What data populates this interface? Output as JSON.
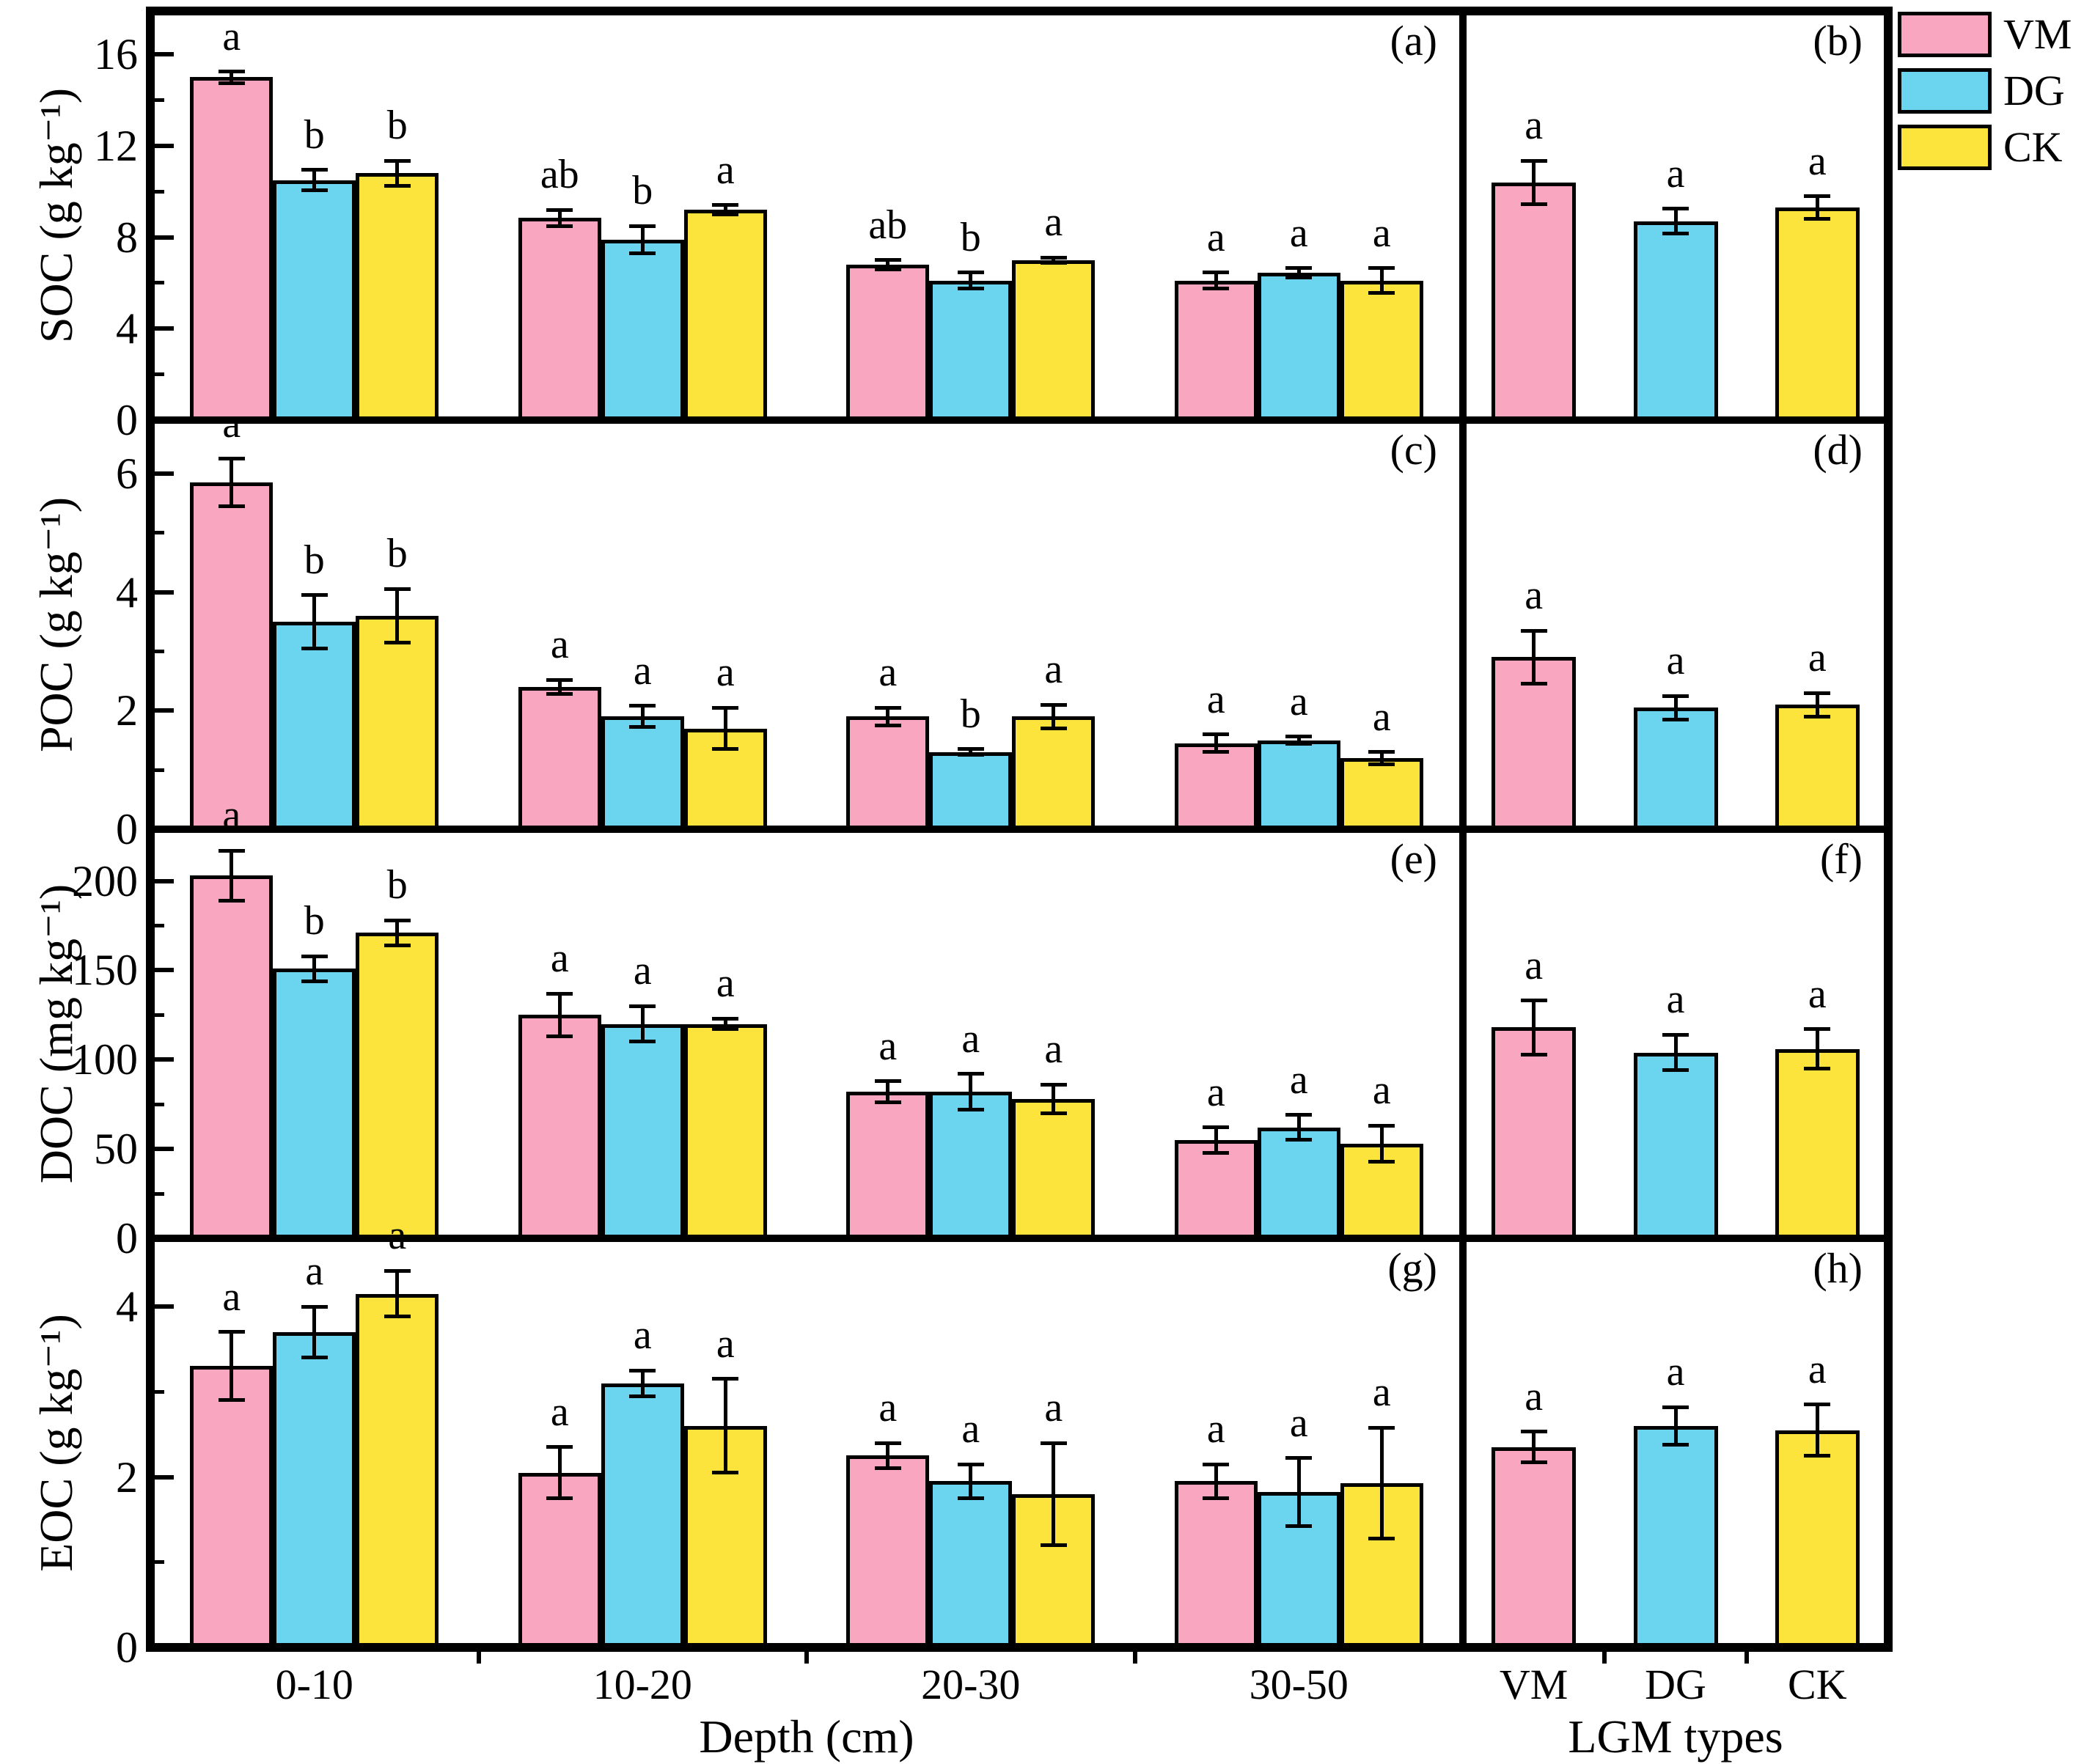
{
  "figure": {
    "x_axis_title_left": "Depth (cm)",
    "x_axis_title_right": "LGM types",
    "series_colors": {
      "VM": "#F9A6C1",
      "DG": "#6BD5F0",
      "CK": "#FCE43C"
    },
    "border_color": "#000000",
    "legend": {
      "position": "top-right-outside",
      "items": [
        {
          "label": "VM",
          "color": "#F9A6C1"
        },
        {
          "label": "DG",
          "color": "#6BD5F0"
        },
        {
          "label": "CK",
          "color": "#FCE43C"
        }
      ]
    }
  },
  "chart_data": [
    {
      "id": "a",
      "panel_label": "(a)",
      "type": "bar",
      "ylabel": "SOC (g kg⁻¹)",
      "ylim": [
        0,
        17.9
      ],
      "yticks": [
        0,
        4,
        8,
        12,
        16
      ],
      "minor_yticks": [
        2,
        6,
        10,
        14
      ],
      "show_x_labels": false,
      "groups": [
        {
          "label": "0-10",
          "bars": [
            {
              "series": "VM",
              "value": 15.0,
              "error": 0.25,
              "letter": "a"
            },
            {
              "series": "DG",
              "value": 10.5,
              "error": 0.45,
              "letter": "b"
            },
            {
              "series": "CK",
              "value": 10.8,
              "error": 0.55,
              "letter": "b"
            }
          ]
        },
        {
          "label": "10-20",
          "bars": [
            {
              "series": "VM",
              "value": 8.85,
              "error": 0.35,
              "letter": "ab"
            },
            {
              "series": "DG",
              "value": 7.9,
              "error": 0.6,
              "letter": "b"
            },
            {
              "series": "CK",
              "value": 9.2,
              "error": 0.2,
              "letter": "a"
            }
          ]
        },
        {
          "label": "20-30",
          "bars": [
            {
              "series": "VM",
              "value": 6.8,
              "error": 0.2,
              "letter": "ab"
            },
            {
              "series": "DG",
              "value": 6.1,
              "error": 0.35,
              "letter": "b"
            },
            {
              "series": "CK",
              "value": 7.0,
              "error": 0.12,
              "letter": "a"
            }
          ]
        },
        {
          "label": "30-50",
          "bars": [
            {
              "series": "VM",
              "value": 6.1,
              "error": 0.35,
              "letter": "a"
            },
            {
              "series": "DG",
              "value": 6.45,
              "error": 0.2,
              "letter": "a"
            },
            {
              "series": "CK",
              "value": 6.1,
              "error": 0.55,
              "letter": "a"
            }
          ]
        }
      ]
    },
    {
      "id": "b",
      "panel_label": "(b)",
      "type": "bar",
      "ylabel": "",
      "ylim": [
        0,
        17.9
      ],
      "yticks": [],
      "minor_yticks": [],
      "show_x_labels": false,
      "groups": [
        {
          "label": "VM",
          "bars": [
            {
              "series": "VM",
              "value": 10.4,
              "error": 0.95,
              "letter": "a"
            }
          ]
        },
        {
          "label": "DG",
          "bars": [
            {
              "series": "DG",
              "value": 8.7,
              "error": 0.55,
              "letter": "a"
            }
          ]
        },
        {
          "label": "CK",
          "bars": [
            {
              "series": "CK",
              "value": 9.3,
              "error": 0.5,
              "letter": "a"
            }
          ]
        }
      ]
    },
    {
      "id": "c",
      "panel_label": "(c)",
      "type": "bar",
      "ylabel": "POC (g kg⁻¹)",
      "ylim": [
        0,
        6.9
      ],
      "yticks": [
        0,
        2,
        4,
        6
      ],
      "minor_yticks": [
        1,
        3,
        5
      ],
      "show_x_labels": false,
      "groups": [
        {
          "label": "0-10",
          "bars": [
            {
              "series": "VM",
              "value": 5.85,
              "error": 0.4,
              "letter": "a"
            },
            {
              "series": "DG",
              "value": 3.5,
              "error": 0.45,
              "letter": "b"
            },
            {
              "series": "CK",
              "value": 3.6,
              "error": 0.45,
              "letter": "b"
            }
          ]
        },
        {
          "label": "10-20",
          "bars": [
            {
              "series": "VM",
              "value": 2.4,
              "error": 0.12,
              "letter": "a"
            },
            {
              "series": "DG",
              "value": 1.9,
              "error": 0.18,
              "letter": "a"
            },
            {
              "series": "CK",
              "value": 1.7,
              "error": 0.35,
              "letter": "a"
            }
          ]
        },
        {
          "label": "20-30",
          "bars": [
            {
              "series": "VM",
              "value": 1.9,
              "error": 0.15,
              "letter": "a"
            },
            {
              "series": "DG",
              "value": 1.3,
              "error": 0.05,
              "letter": "b"
            },
            {
              "series": "CK",
              "value": 1.9,
              "error": 0.2,
              "letter": "a"
            }
          ]
        },
        {
          "label": "30-50",
          "bars": [
            {
              "series": "VM",
              "value": 1.45,
              "error": 0.15,
              "letter": "a"
            },
            {
              "series": "DG",
              "value": 1.5,
              "error": 0.06,
              "letter": "a"
            },
            {
              "series": "CK",
              "value": 1.2,
              "error": 0.1,
              "letter": "a"
            }
          ]
        }
      ]
    },
    {
      "id": "d",
      "panel_label": "(d)",
      "type": "bar",
      "ylabel": "",
      "ylim": [
        0,
        6.9
      ],
      "yticks": [],
      "minor_yticks": [],
      "show_x_labels": false,
      "groups": [
        {
          "label": "VM",
          "bars": [
            {
              "series": "VM",
              "value": 2.9,
              "error": 0.45,
              "letter": "a"
            }
          ]
        },
        {
          "label": "DG",
          "bars": [
            {
              "series": "DG",
              "value": 2.05,
              "error": 0.2,
              "letter": "a"
            }
          ]
        },
        {
          "label": "CK",
          "bars": [
            {
              "series": "CK",
              "value": 2.1,
              "error": 0.2,
              "letter": "a"
            }
          ]
        }
      ]
    },
    {
      "id": "e",
      "panel_label": "(e)",
      "type": "bar",
      "ylabel": "DOC (mg kg⁻¹)",
      "ylim": [
        0,
        229
      ],
      "yticks": [
        0,
        50,
        100,
        150,
        200
      ],
      "minor_yticks": [
        25,
        75,
        125,
        175
      ],
      "show_x_labels": false,
      "groups": [
        {
          "label": "0-10",
          "bars": [
            {
              "series": "VM",
              "value": 203,
              "error": 14,
              "letter": "a"
            },
            {
              "series": "DG",
              "value": 151,
              "error": 7,
              "letter": "b"
            },
            {
              "series": "CK",
              "value": 171,
              "error": 7,
              "letter": "b"
            }
          ]
        },
        {
          "label": "10-20",
          "bars": [
            {
              "series": "VM",
              "value": 125,
              "error": 12,
              "letter": "a"
            },
            {
              "series": "DG",
              "value": 120,
              "error": 10,
              "letter": "a"
            },
            {
              "series": "CK",
              "value": 120,
              "error": 3,
              "letter": "a"
            }
          ]
        },
        {
          "label": "20-30",
          "bars": [
            {
              "series": "VM",
              "value": 82,
              "error": 6,
              "letter": "a"
            },
            {
              "series": "DG",
              "value": 82,
              "error": 10,
              "letter": "a"
            },
            {
              "series": "CK",
              "value": 78,
              "error": 8,
              "letter": "a"
            }
          ]
        },
        {
          "label": "30-50",
          "bars": [
            {
              "series": "VM",
              "value": 55,
              "error": 7,
              "letter": "a"
            },
            {
              "series": "DG",
              "value": 62,
              "error": 7,
              "letter": "a"
            },
            {
              "series": "CK",
              "value": 53,
              "error": 10,
              "letter": "a"
            }
          ]
        }
      ]
    },
    {
      "id": "f",
      "panel_label": "(f)",
      "type": "bar",
      "ylabel": "",
      "ylim": [
        0,
        229
      ],
      "yticks": [],
      "minor_yticks": [],
      "show_x_labels": false,
      "groups": [
        {
          "label": "VM",
          "bars": [
            {
              "series": "VM",
              "value": 118,
              "error": 15,
              "letter": "a"
            }
          ]
        },
        {
          "label": "DG",
          "bars": [
            {
              "series": "DG",
              "value": 104,
              "error": 10,
              "letter": "a"
            }
          ]
        },
        {
          "label": "CK",
          "bars": [
            {
              "series": "CK",
              "value": 106,
              "error": 11,
              "letter": "a"
            }
          ]
        }
      ]
    },
    {
      "id": "g",
      "panel_label": "(g)",
      "type": "bar",
      "ylabel": "EOC (g kg⁻¹)",
      "ylim": [
        0,
        4.8
      ],
      "yticks": [
        0,
        2,
        4
      ],
      "minor_yticks": [
        1,
        3
      ],
      "show_x_labels": true,
      "groups": [
        {
          "label": "0-10",
          "bars": [
            {
              "series": "VM",
              "value": 3.3,
              "error": 0.4,
              "letter": "a"
            },
            {
              "series": "DG",
              "value": 3.7,
              "error": 0.3,
              "letter": "a"
            },
            {
              "series": "CK",
              "value": 4.15,
              "error": 0.27,
              "letter": "a"
            }
          ]
        },
        {
          "label": "10-20",
          "bars": [
            {
              "series": "VM",
              "value": 2.05,
              "error": 0.3,
              "letter": "a"
            },
            {
              "series": "DG",
              "value": 3.1,
              "error": 0.15,
              "letter": "a"
            },
            {
              "series": "CK",
              "value": 2.6,
              "error": 0.55,
              "letter": "a"
            }
          ]
        },
        {
          "label": "20-30",
          "bars": [
            {
              "series": "VM",
              "value": 2.25,
              "error": 0.15,
              "letter": "a"
            },
            {
              "series": "DG",
              "value": 1.95,
              "error": 0.2,
              "letter": "a"
            },
            {
              "series": "CK",
              "value": 1.8,
              "error": 0.6,
              "letter": "a"
            }
          ]
        },
        {
          "label": "30-50",
          "bars": [
            {
              "series": "VM",
              "value": 1.95,
              "error": 0.2,
              "letter": "a"
            },
            {
              "series": "DG",
              "value": 1.82,
              "error": 0.4,
              "letter": "a"
            },
            {
              "series": "CK",
              "value": 1.93,
              "error": 0.65,
              "letter": "a"
            }
          ]
        }
      ]
    },
    {
      "id": "h",
      "panel_label": "(h)",
      "type": "bar",
      "ylabel": "",
      "ylim": [
        0,
        4.8
      ],
      "yticks": [],
      "minor_yticks": [],
      "show_x_labels": true,
      "groups": [
        {
          "label": "VM",
          "bars": [
            {
              "series": "VM",
              "value": 2.35,
              "error": 0.18,
              "letter": "a"
            }
          ]
        },
        {
          "label": "DG",
          "bars": [
            {
              "series": "DG",
              "value": 2.6,
              "error": 0.22,
              "letter": "a"
            }
          ]
        },
        {
          "label": "CK",
          "bars": [
            {
              "series": "CK",
              "value": 2.55,
              "error": 0.3,
              "letter": "a"
            }
          ]
        }
      ]
    }
  ]
}
